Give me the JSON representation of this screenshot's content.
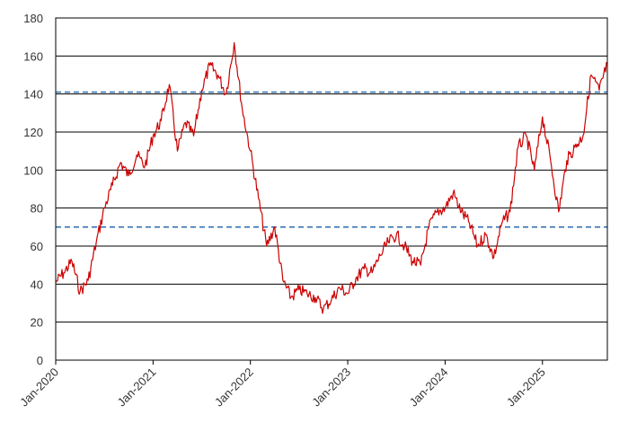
{
  "chart_data": {
    "type": "line",
    "title": "",
    "xlabel": "",
    "ylabel": "",
    "ylim": [
      0,
      180
    ],
    "y_ticks": [
      0,
      20,
      40,
      60,
      80,
      100,
      120,
      140,
      160,
      180
    ],
    "xlim": [
      "2020-01",
      "2025-09"
    ],
    "x_ticks": [
      {
        "date": "2020-01",
        "label": "Jan-2020"
      },
      {
        "date": "2021-01",
        "label": "Jan-2021"
      },
      {
        "date": "2022-01",
        "label": "Jan-2022"
      },
      {
        "date": "2023-01",
        "label": "Jan-2023"
      },
      {
        "date": "2024-01",
        "label": "Jan-2024"
      },
      {
        "date": "2025-01",
        "label": "Jan-2025"
      }
    ],
    "grid": "horizontal",
    "legend": "none",
    "series": [
      {
        "color": "#cc0000",
        "points": [
          [
            "2020-01",
            41
          ],
          [
            "2020-02",
            46
          ],
          [
            "2020-03",
            52
          ],
          [
            "2020-04",
            36
          ],
          [
            "2020-05",
            42
          ],
          [
            "2020-06",
            62
          ],
          [
            "2020-07",
            80
          ],
          [
            "2020-08",
            92
          ],
          [
            "2020-09",
            104
          ],
          [
            "2020-10",
            97
          ],
          [
            "2020-11",
            108
          ],
          [
            "2020-12",
            102
          ],
          [
            "2021-01",
            118
          ],
          [
            "2021-02",
            126
          ],
          [
            "2021-03",
            145
          ],
          [
            "2021-04",
            110
          ],
          [
            "2021-05",
            125
          ],
          [
            "2021-06",
            118
          ],
          [
            "2021-07",
            142
          ],
          [
            "2021-08",
            155
          ],
          [
            "2021-09",
            150
          ],
          [
            "2021-10",
            140
          ],
          [
            "2021-11",
            167
          ],
          [
            "2021-12",
            132
          ],
          [
            "2022-01",
            110
          ],
          [
            "2022-02",
            85
          ],
          [
            "2022-03",
            60
          ],
          [
            "2022-04",
            70
          ],
          [
            "2022-05",
            42
          ],
          [
            "2022-06",
            33
          ],
          [
            "2022-07",
            37
          ],
          [
            "2022-08",
            35
          ],
          [
            "2022-09",
            33
          ],
          [
            "2022-10",
            27
          ],
          [
            "2022-11",
            32
          ],
          [
            "2022-12",
            38
          ],
          [
            "2023-01",
            35
          ],
          [
            "2023-02",
            43
          ],
          [
            "2023-03",
            48
          ],
          [
            "2023-04",
            46
          ],
          [
            "2023-05",
            55
          ],
          [
            "2023-06",
            62
          ],
          [
            "2023-07",
            66
          ],
          [
            "2023-08",
            60
          ],
          [
            "2023-09",
            52
          ],
          [
            "2023-10",
            50
          ],
          [
            "2023-11",
            70
          ],
          [
            "2023-12",
            78
          ],
          [
            "2024-01",
            80
          ],
          [
            "2024-02",
            88
          ],
          [
            "2024-03",
            78
          ],
          [
            "2024-04",
            72
          ],
          [
            "2024-05",
            60
          ],
          [
            "2024-06",
            66
          ],
          [
            "2024-07",
            54
          ],
          [
            "2024-08",
            72
          ],
          [
            "2024-09",
            78
          ],
          [
            "2024-10",
            112
          ],
          [
            "2024-11",
            118
          ],
          [
            "2024-12",
            100
          ],
          [
            "2025-01",
            128
          ],
          [
            "2025-02",
            105
          ],
          [
            "2025-03",
            78
          ],
          [
            "2025-04",
            105
          ],
          [
            "2025-05",
            112
          ],
          [
            "2025-06",
            118
          ],
          [
            "2025-07",
            150
          ],
          [
            "2025-08",
            142
          ],
          [
            "2025-09",
            156
          ]
        ]
      }
    ],
    "reference_lines": [
      {
        "value": 141,
        "color": "#3a78b5",
        "style": "dashed"
      },
      {
        "value": 70,
        "color": "#3a78b5",
        "style": "dashed"
      }
    ]
  }
}
